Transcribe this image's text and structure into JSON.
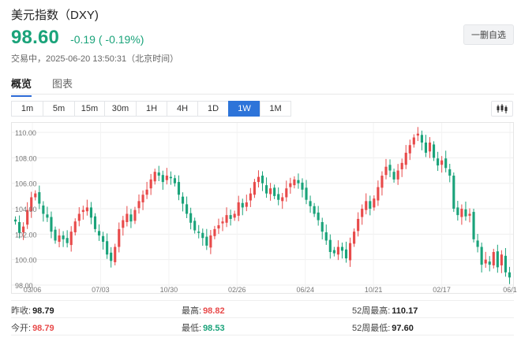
{
  "header": {
    "title": "美元指数（DXY)",
    "price": "98.60",
    "change": "-0.19 ( -0.19%)",
    "status": "交易中，2025-06-20 13:50:31（北京时间）",
    "remove_watchlist": "一删自选"
  },
  "tabs": [
    {
      "label": "概览",
      "active": true
    },
    {
      "label": "图表",
      "active": false
    }
  ],
  "periods": [
    {
      "label": "1m",
      "active": false
    },
    {
      "label": "5m",
      "active": false
    },
    {
      "label": "15m",
      "active": false
    },
    {
      "label": "30m",
      "active": false
    },
    {
      "label": "1H",
      "active": false
    },
    {
      "label": "4H",
      "active": false
    },
    {
      "label": "1D",
      "active": false
    },
    {
      "label": "1W",
      "active": true
    },
    {
      "label": "1M",
      "active": false
    }
  ],
  "colors": {
    "up": "#e84a4a",
    "down": "#1aa37a",
    "accent": "#2d74d9"
  },
  "chart_data": {
    "type": "candlestick",
    "y_ticks": [
      "110.00",
      "108.00",
      "106.00",
      "104.00",
      "102.00",
      "100.00",
      "98.00"
    ],
    "ylim": [
      98,
      110.5
    ],
    "x_ticks": [
      "03/06",
      "07/03",
      "10/30",
      "02/26",
      "06/24",
      "10/21",
      "02/17",
      "06/1"
    ],
    "grid": true,
    "close_trace": [
      103.0,
      102.1,
      102.6,
      103.9,
      104.9,
      105.2,
      104.4,
      103.6,
      103.3,
      102.2,
      101.5,
      101.9,
      101.6,
      101.3,
      102.2,
      103.0,
      103.6,
      103.9,
      104.1,
      103.3,
      102.4,
      101.9,
      101.4,
      100.4,
      99.9,
      101.0,
      102.4,
      103.1,
      103.6,
      103.0,
      103.9,
      104.6,
      105.1,
      105.5,
      106.3,
      106.9,
      106.6,
      106.1,
      106.6,
      106.4,
      106.0,
      105.1,
      104.4,
      103.6,
      102.9,
      102.3,
      102.1,
      101.7,
      101.1,
      101.9,
      102.4,
      102.7,
      103.0,
      103.5,
      103.2,
      103.6,
      104.5,
      104.1,
      104.5,
      105.2,
      106.1,
      106.5,
      106.0,
      105.2,
      105.6,
      105.0,
      104.7,
      104.9,
      105.6,
      106.0,
      106.3,
      106.0,
      105.5,
      104.7,
      104.2,
      103.6,
      103.1,
      102.2,
      101.5,
      100.6,
      100.5,
      101.0,
      100.7,
      100.1,
      101.3,
      102.2,
      103.2,
      104.0,
      104.6,
      104.0,
      104.8,
      105.7,
      106.6,
      107.3,
      107.0,
      106.3,
      107.0,
      107.6,
      108.4,
      109.0,
      109.6,
      109.9,
      109.2,
      108.4,
      109.2,
      108.0,
      107.4,
      107.8,
      107.2,
      106.6,
      104.0,
      103.5,
      104.0,
      103.4,
      103.6,
      101.6,
      101.0,
      99.6,
      100.0,
      99.6,
      100.6,
      99.4,
      100.4,
      99.0,
      98.6
    ]
  },
  "stats": {
    "prev_close_label": "昨收:",
    "prev_close": "98.79",
    "high_label": "最高:",
    "high": "98.82",
    "w52_high_label": "52周最高:",
    "w52_high": "110.17",
    "open_label": "今开:",
    "open": "98.79",
    "low_label": "最低:",
    "low": "98.53",
    "w52_low_label": "52周最低:",
    "w52_low": "97.60"
  }
}
